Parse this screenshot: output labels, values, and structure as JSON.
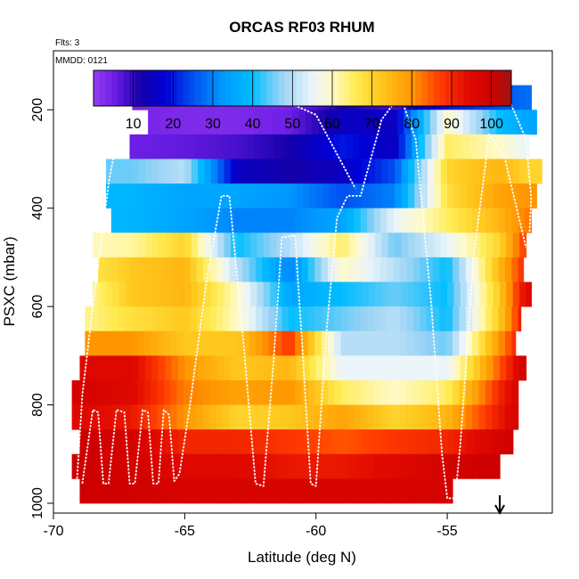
{
  "chart_data": {
    "type": "heatmap",
    "title": "ORCAS RF03 RHUM",
    "note_flights": "Flts: 3",
    "note_date": "MMDD: 0121",
    "xlabel": "Latitude (deg N)",
    "ylabel": "PSXC (mbar)",
    "xlim": [
      -70,
      -51
    ],
    "ylim": [
      1020,
      80
    ],
    "x_ticks": [
      -70,
      -65,
      -60,
      -55
    ],
    "x_tick_labels": [
      "-70",
      "-65",
      "-60",
      "-55"
    ],
    "y_ticks": [
      200,
      400,
      600,
      800,
      1000
    ],
    "y_tick_labels": [
      "200",
      "400",
      "600",
      "800",
      "1000"
    ],
    "grid": false,
    "colorbar": {
      "ticks": [
        10,
        20,
        30,
        40,
        50,
        60,
        70,
        80,
        90,
        100
      ],
      "tick_labels": [
        "10",
        "20",
        "30",
        "40",
        "50",
        "60",
        "70",
        "80",
        "90",
        "100"
      ],
      "range": [
        0,
        105
      ],
      "placement": "top inside plot"
    },
    "pressure_levels": [
      175,
      225,
      275,
      325,
      375,
      425,
      475,
      525,
      575,
      625,
      675,
      725,
      775,
      825,
      875,
      925,
      975
    ],
    "level_extent_deg": [
      [
        -67.0,
        -51.8
      ],
      [
        -66.4,
        -51.6
      ],
      [
        -67.1,
        -51.9
      ],
      [
        -68.0,
        -51.4
      ],
      [
        -68.0,
        -51.6
      ],
      [
        -67.8,
        -51.8
      ],
      [
        -68.5,
        -52.0
      ],
      [
        -68.3,
        -52.1
      ],
      [
        -68.5,
        -51.8
      ],
      [
        -68.8,
        -52.2
      ],
      [
        -68.8,
        -52.4
      ],
      [
        -69.0,
        -52.0
      ],
      [
        -69.3,
        -52.3
      ],
      [
        -69.3,
        -52.3
      ],
      [
        -69.0,
        -52.5
      ],
      [
        -69.3,
        -53.0
      ],
      [
        -69.0,
        -54.8
      ]
    ],
    "rhum_profile_lat": [
      -69,
      -67,
      -65,
      -63,
      -61,
      -59,
      -57,
      -55,
      -53,
      -52
    ],
    "rhum_profiles": [
      [
        5,
        4,
        3,
        3,
        4,
        12,
        8,
        20,
        25,
        28
      ],
      [
        5,
        4,
        3,
        3,
        5,
        15,
        15,
        60,
        40,
        35
      ],
      [
        5,
        5,
        6,
        8,
        12,
        20,
        15,
        65,
        60,
        55
      ],
      [
        45,
        45,
        50,
        15,
        12,
        15,
        25,
        70,
        75,
        70
      ],
      [
        40,
        38,
        35,
        35,
        32,
        25,
        30,
        68,
        78,
        80
      ],
      [
        40,
        38,
        35,
        30,
        30,
        35,
        55,
        65,
        75,
        82
      ],
      [
        60,
        62,
        70,
        40,
        50,
        65,
        45,
        55,
        70,
        88
      ],
      [
        65,
        72,
        75,
        50,
        30,
        60,
        50,
        40,
        75,
        90
      ],
      [
        60,
        72,
        75,
        60,
        35,
        40,
        45,
        40,
        72,
        95
      ],
      [
        62,
        68,
        72,
        60,
        40,
        45,
        50,
        40,
        72,
        95
      ],
      [
        80,
        80,
        72,
        72,
        88,
        50,
        50,
        45,
        80,
        95
      ],
      [
        95,
        95,
        80,
        72,
        75,
        55,
        55,
        55,
        85,
        100
      ],
      [
        98,
        95,
        82,
        78,
        80,
        65,
        60,
        65,
        90,
        100
      ],
      [
        95,
        92,
        80,
        70,
        72,
        78,
        70,
        75,
        92,
        100
      ],
      [
        100,
        98,
        90,
        90,
        88,
        85,
        88,
        90,
        98,
        100
      ],
      [
        100,
        98,
        95,
        95,
        92,
        92,
        95,
        98,
        100,
        100
      ],
      [
        100,
        99,
        97,
        97,
        97,
        97,
        97,
        98,
        100,
        100
      ]
    ],
    "flight_tracks": [
      [
        [
          -68.9,
          960
        ],
        [
          -68.5,
          810
        ],
        [
          -68.3,
          815
        ],
        [
          -68.1,
          960
        ],
        [
          -67.9,
          960
        ],
        [
          -67.6,
          810
        ],
        [
          -67.3,
          815
        ],
        [
          -67.1,
          960
        ],
        [
          -66.9,
          960
        ],
        [
          -66.6,
          810
        ],
        [
          -66.4,
          815
        ],
        [
          -66.2,
          960
        ],
        [
          -66.0,
          960
        ],
        [
          -65.8,
          810
        ],
        [
          -65.6,
          820
        ],
        [
          -65.4,
          955
        ],
        [
          -65.2,
          940
        ],
        [
          -64.8,
          800
        ],
        [
          -64.2,
          560
        ],
        [
          -63.6,
          375
        ],
        [
          -63.3,
          375
        ],
        [
          -62.8,
          650
        ],
        [
          -62.3,
          960
        ],
        [
          -62.0,
          965
        ],
        [
          -61.6,
          700
        ],
        [
          -61.3,
          460
        ],
        [
          -60.8,
          455
        ],
        [
          -60.5,
          700
        ],
        [
          -60.2,
          960
        ],
        [
          -60.0,
          965
        ],
        [
          -59.6,
          650
        ],
        [
          -59.2,
          420
        ],
        [
          -58.8,
          375
        ],
        [
          -58.3,
          375
        ],
        [
          -57.5,
          220
        ],
        [
          -56.8,
          170
        ],
        [
          -56.2,
          260
        ],
        [
          -55.6,
          600
        ],
        [
          -55.2,
          900
        ],
        [
          -55.0,
          990
        ],
        [
          -54.7,
          990
        ],
        [
          -54.5,
          880
        ],
        [
          -54.0,
          500
        ],
        [
          -53.4,
          250
        ],
        [
          -52.8,
          300
        ],
        [
          -52.0,
          480
        ]
      ],
      [
        [
          -69.1,
          950
        ],
        [
          -68.9,
          780
        ],
        [
          -68.5,
          600
        ],
        [
          -67.9,
          350
        ],
        [
          -67.3,
          175
        ],
        [
          -66.5,
          175
        ],
        [
          -64.0,
          175
        ],
        [
          -61.5,
          175
        ],
        [
          -60.0,
          210
        ],
        [
          -59.5,
          260
        ],
        [
          -58.9,
          320
        ],
        [
          -58.5,
          360
        ]
      ],
      [
        [
          -58.2,
          175
        ],
        [
          -57.5,
          175
        ],
        [
          -56.8,
          175
        ],
        [
          -55.5,
          175
        ],
        [
          -53.5,
          175
        ],
        [
          -52.6,
          185
        ],
        [
          -52.0,
          260
        ],
        [
          -51.8,
          380
        ],
        [
          -51.9,
          480
        ]
      ]
    ],
    "marker_arrow_lat": -53.0
  }
}
